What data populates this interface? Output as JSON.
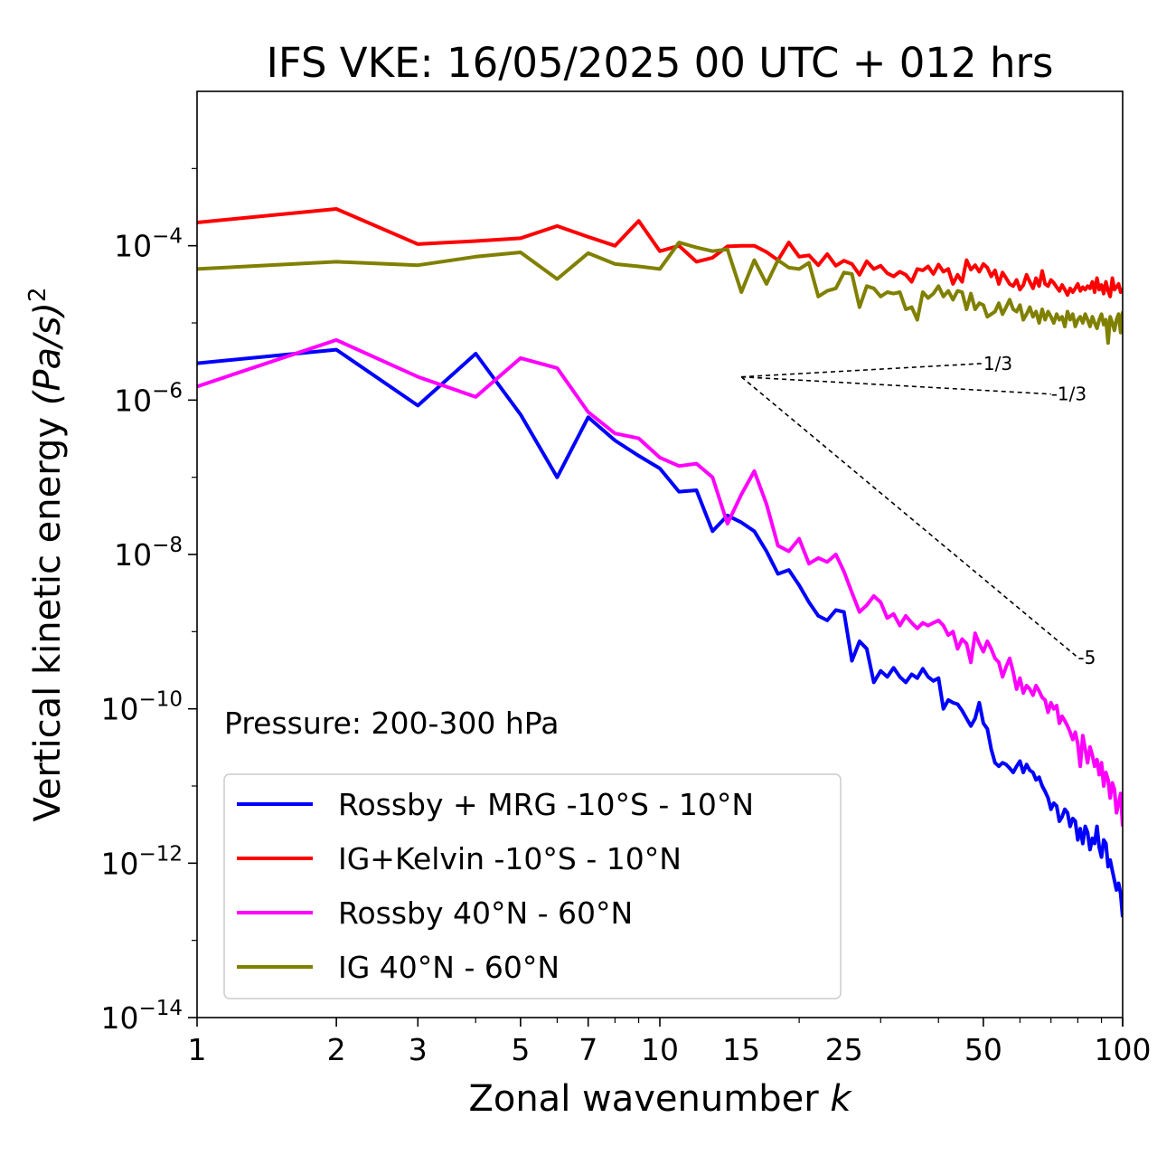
{
  "chart_data": {
    "type": "line",
    "title": "IFS VKE: 16/05/2025 00 UTC + 012 hrs",
    "xlabel": "Zonal wavenumber",
    "xlabel_symbol": "k",
    "ylabel": "Vertical kinetic energy",
    "ylabel_unit": "(Pa/s)",
    "ylabel_power": "2",
    "x_scale": "log",
    "y_scale": "log",
    "xlim": [
      1,
      100
    ],
    "ylim": [
      1e-14,
      0.01
    ],
    "x_ticks": [
      1,
      2,
      3,
      5,
      7,
      10,
      15,
      25,
      50,
      100
    ],
    "y_ticks": [
      {
        "base": "10",
        "exp": "−4",
        "value": 0.0001
      },
      {
        "base": "10",
        "exp": "−6",
        "value": 1e-06
      },
      {
        "base": "10",
        "exp": "−8",
        "value": 1e-08
      },
      {
        "base": "10",
        "exp": "−10",
        "value": 1e-10
      },
      {
        "base": "10",
        "exp": "−12",
        "value": 1e-12
      },
      {
        "base": "10",
        "exp": "−14",
        "value": 1e-14
      }
    ],
    "annotation": "Pressure: 200-300 hPa",
    "legend_position": "lower-left",
    "reference_slopes": [
      {
        "label": "1/3",
        "slope": 0.3333,
        "x0": 15,
        "y0": 2e-06,
        "x1": 50
      },
      {
        "label": "-1/3",
        "slope": -0.3333,
        "x0": 15,
        "y0": 2e-06,
        "x1": 70
      },
      {
        "label": "-5",
        "slope": -5,
        "x0": 15,
        "y0": 2e-06,
        "x1": 80
      }
    ],
    "series": [
      {
        "name": "Rossby + MRG -10°S - 10°N",
        "color": "#0000ff",
        "x": [
          1,
          2,
          3,
          4,
          5,
          6,
          7,
          8,
          9,
          10,
          11,
          12,
          13,
          14,
          15,
          16,
          17,
          18,
          19,
          20,
          21,
          22,
          23,
          24,
          25,
          26,
          27,
          28,
          29,
          30,
          31,
          32,
          33,
          34,
          35,
          36,
          37,
          38,
          39,
          40,
          41,
          42,
          43,
          44,
          45,
          46,
          47,
          48,
          49,
          50,
          51,
          52,
          53,
          54,
          55,
          56,
          57,
          58,
          59,
          60,
          61,
          62,
          63,
          64,
          65,
          66,
          67,
          68,
          69,
          70,
          71,
          72,
          73,
          74,
          75,
          76,
          77,
          78,
          79,
          80,
          81,
          82,
          83,
          84,
          85,
          86,
          87,
          88,
          89,
          90,
          91,
          92,
          93,
          94,
          95,
          96,
          97,
          98,
          99,
          100
        ],
        "values": [
          3e-06,
          4.5e-06,
          8.5e-07,
          4e-06,
          6.5e-07,
          1e-07,
          6e-07,
          3e-07,
          1.9e-07,
          1.3e-07,
          6.5e-08,
          6.8e-08,
          2e-08,
          3.2e-08,
          2.6e-08,
          2e-08,
          1.1e-08,
          5.6e-09,
          6.3e-09,
          4e-09,
          2.4e-09,
          1.6e-09,
          1.4e-09,
          1.9e-09,
          1.8e-09,
          4.2e-10,
          7.5e-10,
          6e-10,
          2.2e-10,
          3.1e-10,
          2.6e-10,
          3.4e-10,
          2.6e-10,
          2.2e-10,
          2.8e-10,
          2.5e-10,
          3.3e-10,
          2.6e-10,
          2.3e-10,
          2.5e-10,
          1e-10,
          1.3e-10,
          1.2e-10,
          1.15e-10,
          9.5e-11,
          7.5e-11,
          6e-11,
          7.5e-11,
          1.2e-10,
          6.5e-11,
          5.5e-11,
          3e-11,
          2e-11,
          1.8e-11,
          2e-11,
          1.9e-11,
          1.7e-11,
          1.5e-11,
          1.8e-11,
          2.1e-11,
          1.5e-11,
          1.9e-11,
          1.6e-11,
          1.5e-11,
          1.2e-11,
          1.3e-11,
          1e-11,
          8.5e-12,
          7e-12,
          5e-12,
          6e-12,
          5.5e-12,
          3.5e-12,
          4e-12,
          5e-12,
          4.5e-12,
          3e-12,
          3.8e-12,
          3.5e-12,
          2e-12,
          2.8e-12,
          1.8e-12,
          3e-12,
          2.5e-12,
          1.5e-12,
          2.1e-12,
          1.8e-12,
          3e-12,
          1.6e-12,
          1.2e-12,
          2e-12,
          1.8e-12,
          9e-13,
          1.1e-12,
          8e-13,
          6e-13,
          4.5e-13,
          5.5e-13,
          4e-13,
          2e-13
        ]
      },
      {
        "name": "IG+Kelvin -10°S - 10°N",
        "color": "#ff0000",
        "x": [
          1,
          2,
          3,
          4,
          5,
          6,
          7,
          8,
          9,
          10,
          11,
          12,
          13,
          14,
          15,
          16,
          17,
          18,
          19,
          20,
          21,
          22,
          23,
          24,
          25,
          26,
          27,
          28,
          29,
          30,
          31,
          32,
          33,
          34,
          35,
          36,
          37,
          38,
          39,
          40,
          41,
          42,
          43,
          44,
          45,
          46,
          47,
          48,
          49,
          50,
          51,
          52,
          53,
          54,
          55,
          56,
          57,
          58,
          59,
          60,
          61,
          62,
          63,
          64,
          65,
          66,
          67,
          68,
          69,
          70,
          71,
          72,
          73,
          74,
          75,
          76,
          77,
          78,
          79,
          80,
          81,
          82,
          83,
          84,
          85,
          86,
          87,
          88,
          89,
          90,
          91,
          92,
          93,
          94,
          95,
          96,
          97,
          98,
          99,
          100
        ],
        "values": [
          0.0002,
          0.0003,
          0.000105,
          0.000115,
          0.000125,
          0.00018,
          0.00013,
          0.0001,
          0.00021,
          8.5e-05,
          0.0001,
          6.2e-05,
          7e-05,
          9.8e-05,
          0.0001,
          0.0001,
          8.3e-05,
          6.5e-05,
          0.00011,
          7.2e-05,
          7.5e-05,
          5.6e-05,
          7.8e-05,
          5.5e-05,
          6.4e-05,
          5.8e-05,
          4.2e-05,
          6.3e-05,
          5e-05,
          5.5e-05,
          4.4e-05,
          4e-05,
          4.6e-05,
          4.2e-05,
          3.4e-05,
          5e-05,
          4.8e-05,
          5.4e-05,
          4.3e-05,
          5.7e-05,
          4.6e-05,
          5e-05,
          3.2e-05,
          4.2e-05,
          3.4e-05,
          6.5e-05,
          4.9e-05,
          5.6e-05,
          4.6e-05,
          5.8e-05,
          5.2e-05,
          4e-05,
          4.8e-05,
          3.2e-05,
          4.5e-05,
          3.8e-05,
          3.2e-05,
          3e-05,
          3.6e-05,
          2.7e-05,
          3.1e-05,
          4.2e-05,
          3.4e-05,
          2.8e-05,
          3.8e-05,
          3e-05,
          4.7e-05,
          3.2e-05,
          3e-05,
          3.6e-05,
          3.3e-05,
          2.9e-05,
          2.6e-05,
          3.1e-05,
          2.7e-05,
          2.3e-05,
          2.8e-05,
          2.5e-05,
          2.8e-05,
          3.2e-05,
          2.6e-05,
          2.9e-05,
          2.7e-05,
          3e-05,
          2.8e-05,
          3.4e-05,
          2.5e-05,
          3.8e-05,
          2.7e-05,
          3.1e-05,
          2.4e-05,
          3.4e-05,
          2.6e-05,
          2.2e-05,
          3.8e-05,
          2.7e-05,
          2.9e-05,
          3.2e-05,
          2.5e-05,
          2.8e-05
        ]
      },
      {
        "name": "Rossby 40°N - 60°N",
        "color": "#ff00ff",
        "x": [
          1,
          2,
          3,
          4,
          5,
          6,
          7,
          8,
          9,
          10,
          11,
          12,
          13,
          14,
          15,
          16,
          17,
          18,
          19,
          20,
          21,
          22,
          23,
          24,
          25,
          26,
          27,
          28,
          29,
          30,
          31,
          32,
          33,
          34,
          35,
          36,
          37,
          38,
          39,
          40,
          41,
          42,
          43,
          44,
          45,
          46,
          47,
          48,
          49,
          50,
          51,
          52,
          53,
          54,
          55,
          56,
          57,
          58,
          59,
          60,
          61,
          62,
          63,
          64,
          65,
          66,
          67,
          68,
          69,
          70,
          71,
          72,
          73,
          74,
          75,
          76,
          77,
          78,
          79,
          80,
          81,
          82,
          83,
          84,
          85,
          86,
          87,
          88,
          89,
          90,
          91,
          92,
          93,
          94,
          95,
          96,
          97,
          98,
          99,
          100
        ],
        "values": [
          1.5e-06,
          6e-06,
          2e-06,
          1.1e-06,
          3.5e-06,
          2.6e-06,
          7e-07,
          3.7e-07,
          3.2e-07,
          1.8e-07,
          1.4e-07,
          1.5e-07,
          1e-07,
          2.5e-08,
          6e-08,
          1.2e-07,
          4.5e-08,
          1.3e-08,
          1.1e-08,
          1.6e-08,
          7.6e-09,
          9e-09,
          8e-09,
          1e-08,
          6e-09,
          3.2e-09,
          1.8e-09,
          2.2e-09,
          2.9e-09,
          2.4e-09,
          1.5e-09,
          1.7e-09,
          1.2e-09,
          1.6e-09,
          1.3e-09,
          1.1e-09,
          1.3e-09,
          1.2e-09,
          1.3e-09,
          1.4e-09,
          1.2e-09,
          9e-10,
          1e-09,
          6e-10,
          8e-10,
          7e-10,
          4e-10,
          9.5e-10,
          7e-10,
          5.5e-10,
          7.5e-10,
          6e-10,
          4.5e-10,
          4e-10,
          2.6e-10,
          3.5e-10,
          4.5e-10,
          3e-10,
          1.8e-10,
          2.5e-10,
          1.6e-10,
          2e-10,
          1.8e-10,
          1.5e-10,
          2e-10,
          1.7e-10,
          1.4e-10,
          1.3e-10,
          9e-11,
          1.2e-10,
          1e-10,
          1.1e-10,
          6.5e-11,
          8e-11,
          7e-11,
          6e-11,
          5e-11,
          4e-11,
          5e-11,
          3.5e-11,
          1.8e-11,
          4.5e-11,
          3e-11,
          2e-11,
          3.2e-11,
          2.5e-11,
          1.8e-11,
          2.2e-11,
          1.4e-11,
          2e-11,
          1e-11,
          1.5e-11,
          1.2e-11,
          7e-12,
          1.1e-11,
          9e-12,
          4.5e-12,
          6e-12,
          8e-12,
          3e-12
        ]
      },
      {
        "name": "IG 40°N - 60°N",
        "color": "#808000",
        "x": [
          1,
          2,
          3,
          4,
          5,
          6,
          7,
          8,
          9,
          10,
          11,
          12,
          13,
          14,
          15,
          16,
          17,
          18,
          19,
          20,
          21,
          22,
          23,
          24,
          25,
          26,
          27,
          28,
          29,
          30,
          31,
          32,
          33,
          34,
          35,
          36,
          37,
          38,
          39,
          40,
          41,
          42,
          43,
          44,
          45,
          46,
          47,
          48,
          49,
          50,
          51,
          52,
          53,
          54,
          55,
          56,
          57,
          58,
          59,
          60,
          61,
          62,
          63,
          64,
          65,
          66,
          67,
          68,
          69,
          70,
          71,
          72,
          73,
          74,
          75,
          76,
          77,
          78,
          79,
          80,
          81,
          82,
          83,
          84,
          85,
          86,
          87,
          88,
          89,
          90,
          91,
          92,
          93,
          94,
          95,
          96,
          97,
          98,
          99,
          100
        ],
        "values": [
          5e-05,
          6.2e-05,
          5.6e-05,
          7.2e-05,
          8.2e-05,
          3.7e-05,
          8e-05,
          5.8e-05,
          5.4e-05,
          5e-05,
          0.00011,
          9.5e-05,
          8.5e-05,
          9e-05,
          2.5e-05,
          6.5e-05,
          3.2e-05,
          6.5e-05,
          5.2e-05,
          5e-05,
          6e-05,
          2.2e-05,
          2.6e-05,
          2.8e-05,
          4.5e-05,
          4.3e-05,
          1.6e-05,
          3e-05,
          2.8e-05,
          2.2e-05,
          2.5e-05,
          2.4e-05,
          2.5e-05,
          1.5e-05,
          1.6e-05,
          1.1e-05,
          2.5e-05,
          2.1e-05,
          2.4e-05,
          3e-05,
          2.2e-05,
          2.6e-05,
          2e-05,
          2.6e-05,
          2.5e-05,
          1.5e-05,
          2.4e-05,
          1.5e-05,
          1.8e-05,
          1.7e-05,
          1.2e-05,
          1.3e-05,
          1.4e-05,
          1.8e-05,
          1.3e-05,
          1.6e-05,
          2e-05,
          1.5e-05,
          1.4e-05,
          1.7e-05,
          1.1e-05,
          1.3e-05,
          1.6e-05,
          1.2e-05,
          1.4e-05,
          1e-05,
          1.5e-05,
          1.1e-05,
          1.4e-05,
          1.2e-05,
          1e-05,
          1.3e-05,
          1.1e-05,
          1.2e-05,
          9e-06,
          1.4e-05,
          1.1e-05,
          1.3e-05,
          9e-06,
          1.1e-05,
          1.2e-05,
          1e-05,
          1.3e-05,
          1.1e-05,
          9e-06,
          1.2e-05,
          1e-05,
          8.5e-06,
          1.1e-05,
          1.3e-05,
          9.5e-06,
          1.1e-05,
          5.5e-06,
          1.2e-05,
          1e-05,
          8e-06,
          1.1e-05,
          1.3e-05,
          7.5e-06,
          1.4e-05
        ]
      }
    ]
  }
}
